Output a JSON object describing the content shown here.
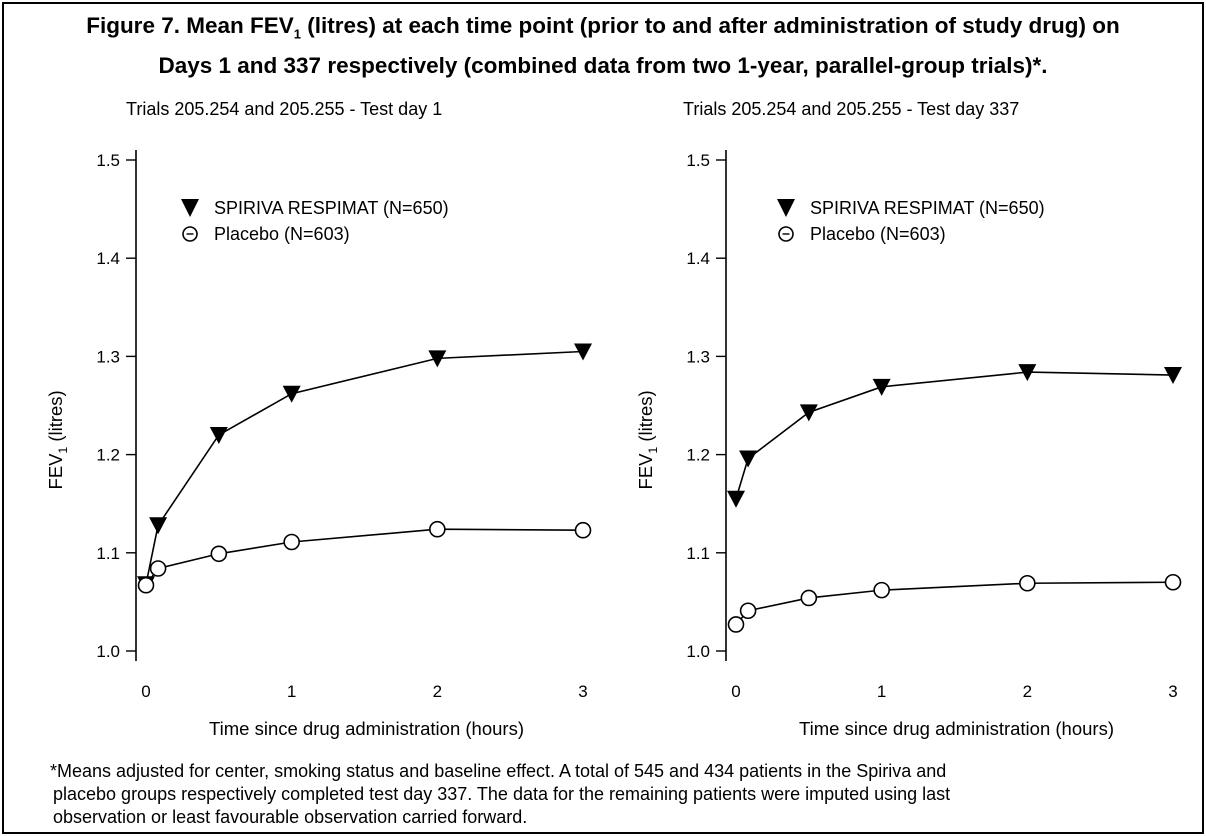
{
  "title": {
    "line1_prefix": "Figure 7. Mean FEV",
    "line1_sub": "1",
    "line1_suffix": " (litres) at each time point (prior to and after administration of study drug) on",
    "line2": "Days 1 and 337 respectively (combined data from two 1-year, parallel-group trials)*."
  },
  "footnote": {
    "line1": "*Means adjusted for center, smoking status and baseline effect. A total of 545 and 434 patients in the Spiriva and",
    "line2": "placebo groups respectively completed test day 337. The data for the remaining patients were imputed using last",
    "line3": "observation or least favourable observation carried forward."
  },
  "chart_data": [
    {
      "type": "line",
      "title": "Trials 205.254 and 205.255 - Test day 1",
      "xlabel": "Time since drug administration (hours)",
      "ylabel_main": "FEV",
      "ylabel_sub": "1",
      "ylabel_suffix": " (litres)",
      "ylim": [
        1.0,
        1.5
      ],
      "xlim": [
        0,
        3
      ],
      "xticks": [
        0,
        1,
        2,
        3
      ],
      "xtick_labels": [
        "0",
        "1",
        "2",
        "3"
      ],
      "yticks": [
        1.0,
        1.1,
        1.2,
        1.3,
        1.4,
        1.5
      ],
      "ytick_labels": [
        "1.0",
        "1.1",
        "1.2",
        "1.3",
        "1.4",
        "1.5"
      ],
      "legend_position": "top-left",
      "series": [
        {
          "name": "SPIRIVA RESPIMAT (N=650)",
          "marker": "triangle-down-filled",
          "x": [
            0,
            0.083,
            0.5,
            1,
            2,
            3
          ],
          "y": [
            1.068,
            1.128,
            1.22,
            1.262,
            1.298,
            1.305
          ]
        },
        {
          "name": "Placebo (N=603)",
          "marker": "circle-open",
          "x": [
            0,
            0.083,
            0.5,
            1,
            2,
            3
          ],
          "y": [
            1.067,
            1.084,
            1.099,
            1.111,
            1.124,
            1.123
          ]
        }
      ]
    },
    {
      "type": "line",
      "title": "Trials 205.254 and 205.255 - Test day 337",
      "xlabel": "Time since drug administration (hours)",
      "ylabel_main": "FEV",
      "ylabel_sub": "1",
      "ylabel_suffix": " (litres)",
      "ylim": [
        1.0,
        1.5
      ],
      "xlim": [
        0,
        3
      ],
      "xticks": [
        0,
        1,
        2,
        3
      ],
      "xtick_labels": [
        "0",
        "1",
        "2",
        "3"
      ],
      "yticks": [
        1.0,
        1.1,
        1.2,
        1.3,
        1.4,
        1.5
      ],
      "ytick_labels": [
        "1.0",
        "1.1",
        "1.2",
        "1.3",
        "1.4",
        "1.5"
      ],
      "legend_position": "top-left",
      "series": [
        {
          "name": "SPIRIVA RESPIMAT (N=650)",
          "marker": "triangle-down-filled",
          "x": [
            0,
            0.083,
            0.5,
            1,
            2,
            3
          ],
          "y": [
            1.155,
            1.196,
            1.243,
            1.269,
            1.284,
            1.281
          ]
        },
        {
          "name": "Placebo (N=603)",
          "marker": "circle-open",
          "x": [
            0,
            0.083,
            0.5,
            1,
            2,
            3
          ],
          "y": [
            1.027,
            1.041,
            1.054,
            1.062,
            1.069,
            1.07
          ]
        }
      ]
    }
  ]
}
